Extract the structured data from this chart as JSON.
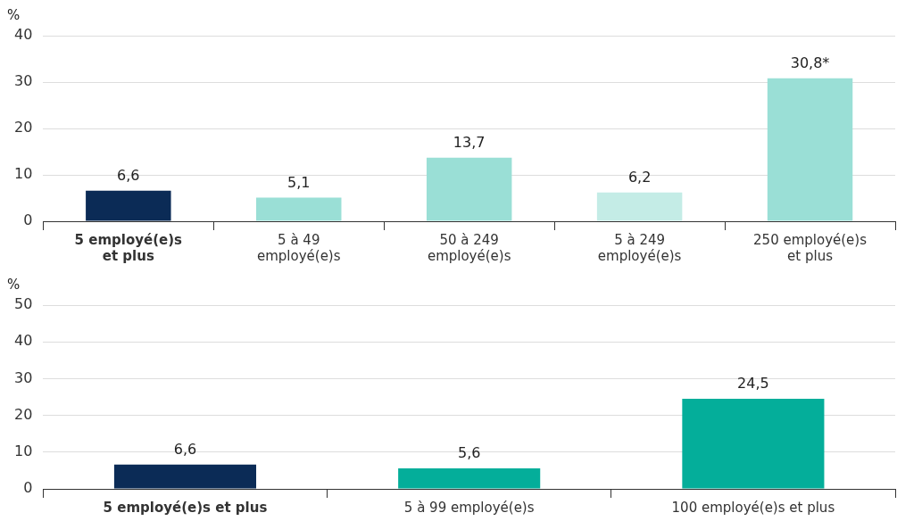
{
  "chart_data": [
    {
      "type": "bar",
      "ylabel": "%",
      "categories": [
        "5 employé(e)s et plus",
        "5 à 49 employé(e)s",
        "50 à 249 employé(e)s",
        "5 à 249 employé(e)s",
        "250 employé(e)s et plus"
      ],
      "values": [
        6.6,
        5.1,
        13.7,
        6.2,
        30.8
      ],
      "colors": [
        "#0b2b56",
        "#9adfd6",
        "#9adfd6",
        "#c4ece6",
        "#9adfd6"
      ],
      "value_labels": [
        "6,6",
        "5,1",
        "13,7",
        "6,2",
        "30,8*"
      ],
      "ylim": [
        0,
        40
      ],
      "yticks": [
        0,
        10,
        20,
        30,
        40
      ],
      "grid": "y",
      "legend": false
    },
    {
      "type": "bar",
      "ylabel": "%",
      "categories": [
        "5 employé(e)s et plus",
        "5 à 99 employé(e)s",
        "100 employé(e)s et plus"
      ],
      "values": [
        6.6,
        5.6,
        24.5
      ],
      "colors": [
        "#0b2b56",
        "#04ae9a",
        "#04ae9a"
      ],
      "value_labels": [
        "6,6",
        "5,6",
        "24,5"
      ],
      "ylim": [
        0,
        50
      ],
      "yticks": [
        0,
        10,
        20,
        30,
        40,
        50
      ],
      "grid": "y",
      "legend": false
    }
  ]
}
